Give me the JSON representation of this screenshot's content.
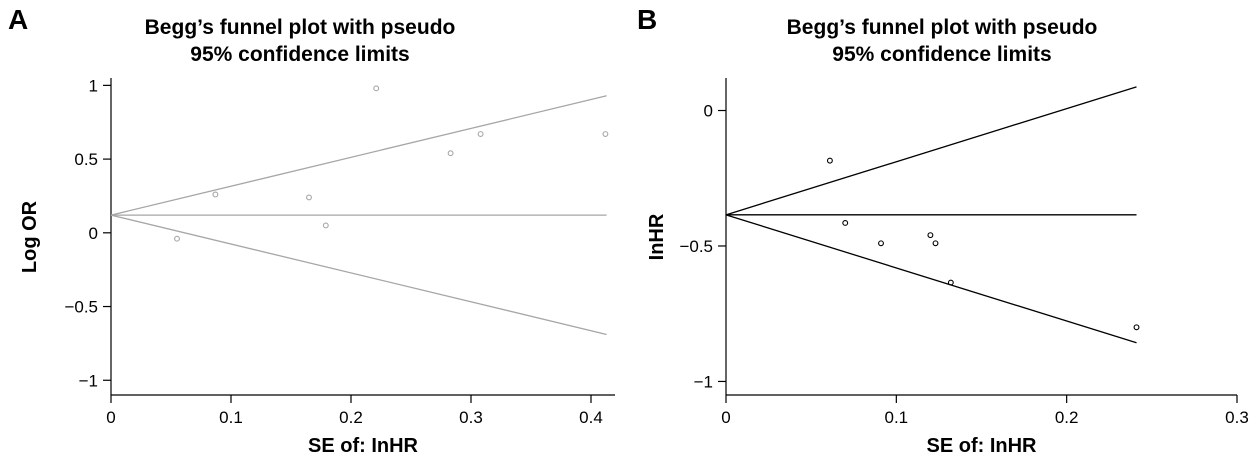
{
  "chart_data": [
    {
      "panel_label": "A",
      "type": "scatter",
      "title_lines": [
        "Begg’s funnel plot with pseudo",
        "95% confidence limits"
      ],
      "xlabel": "SE of: InHR",
      "ylabel": "Log OR",
      "xlim": [
        0,
        0.42
      ],
      "ylim": [
        -1.1,
        1.05
      ],
      "xticks": [
        0,
        0.1,
        0.2,
        0.3,
        0.4
      ],
      "xtick_labels": [
        "0",
        "0.1",
        "0.2",
        "0.3",
        "0.4"
      ],
      "yticks": [
        -1,
        -0.5,
        0,
        0.5,
        1
      ],
      "ytick_labels": [
        "−1",
        "−0.5",
        "0",
        "0.5",
        "1"
      ],
      "grid": false,
      "line_color": "#a6a6a6",
      "marker_color": "#a6a6a6",
      "pooled_estimate": 0.12,
      "funnel_x_max": 0.413,
      "funnel_slope": 1.96,
      "points": [
        {
          "x": 0.055,
          "y": -0.04
        },
        {
          "x": 0.087,
          "y": 0.26
        },
        {
          "x": 0.165,
          "y": 0.24
        },
        {
          "x": 0.179,
          "y": 0.05
        },
        {
          "x": 0.221,
          "y": 0.98
        },
        {
          "x": 0.283,
          "y": 0.54
        },
        {
          "x": 0.308,
          "y": 0.67
        },
        {
          "x": 0.412,
          "y": 0.67
        }
      ]
    },
    {
      "panel_label": "B",
      "type": "scatter",
      "title_lines": [
        "Begg’s funnel plot with pseudo",
        "95% confidence limits"
      ],
      "xlabel": "SE of: InHR",
      "ylabel": "InHR",
      "xlim": [
        0,
        0.3
      ],
      "ylim": [
        -1.05,
        0.12
      ],
      "xticks": [
        0,
        0.1,
        0.2,
        0.3
      ],
      "xtick_labels": [
        "0",
        "0.1",
        "0.2",
        "0.3"
      ],
      "yticks": [
        -1,
        -0.5,
        0
      ],
      "ytick_labels": [
        "−1",
        "−0.5",
        "0"
      ],
      "grid": false,
      "line_color": "#000000",
      "marker_color": "#000000",
      "pooled_estimate": -0.385,
      "funnel_x_max": 0.241,
      "funnel_slope": 1.96,
      "points": [
        {
          "x": 0.061,
          "y": -0.185
        },
        {
          "x": 0.07,
          "y": -0.415
        },
        {
          "x": 0.091,
          "y": -0.49
        },
        {
          "x": 0.12,
          "y": -0.46
        },
        {
          "x": 0.123,
          "y": -0.49
        },
        {
          "x": 0.132,
          "y": -0.635
        },
        {
          "x": 0.241,
          "y": -0.8
        }
      ]
    }
  ]
}
